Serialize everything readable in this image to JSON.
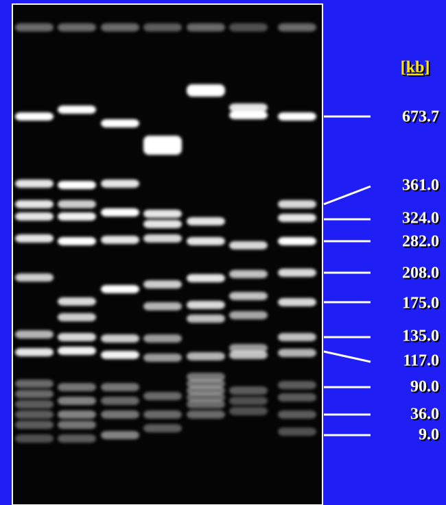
{
  "unit_label": "[kb]",
  "markers": [
    "673.7",
    "361.0",
    "324.0",
    "282.0",
    "208.0",
    "175.0",
    "135.0",
    "117.0",
    "90.0",
    "36.0",
    "9.0"
  ]
}
